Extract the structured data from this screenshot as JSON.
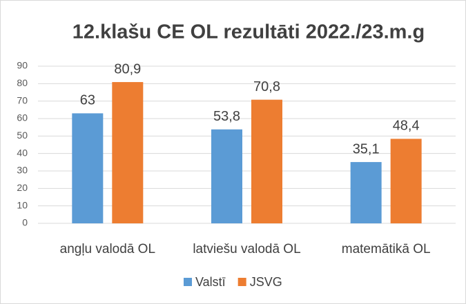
{
  "chart_data": {
    "type": "bar",
    "title": "12.klašu CE OL rezultāti 2022./23.m.g",
    "categories": [
      "angļu valodā OL",
      "latviešu valodā OL",
      "matemātikā OL"
    ],
    "series": [
      {
        "name": "Valstī",
        "color": "#5b9bd5",
        "values": [
          63,
          53.8,
          35.1
        ],
        "value_labels": [
          "63",
          "53,8",
          "35,1"
        ]
      },
      {
        "name": "JSVG",
        "color": "#ed7d31",
        "values": [
          80.9,
          70.8,
          48.4
        ],
        "value_labels": [
          "80,9",
          "70,8",
          "48,4"
        ]
      }
    ],
    "ylim": [
      0,
      90
    ],
    "yticks": [
      0,
      10,
      20,
      30,
      40,
      50,
      60,
      70,
      80,
      90
    ],
    "grid": true,
    "legend": "bottom"
  }
}
